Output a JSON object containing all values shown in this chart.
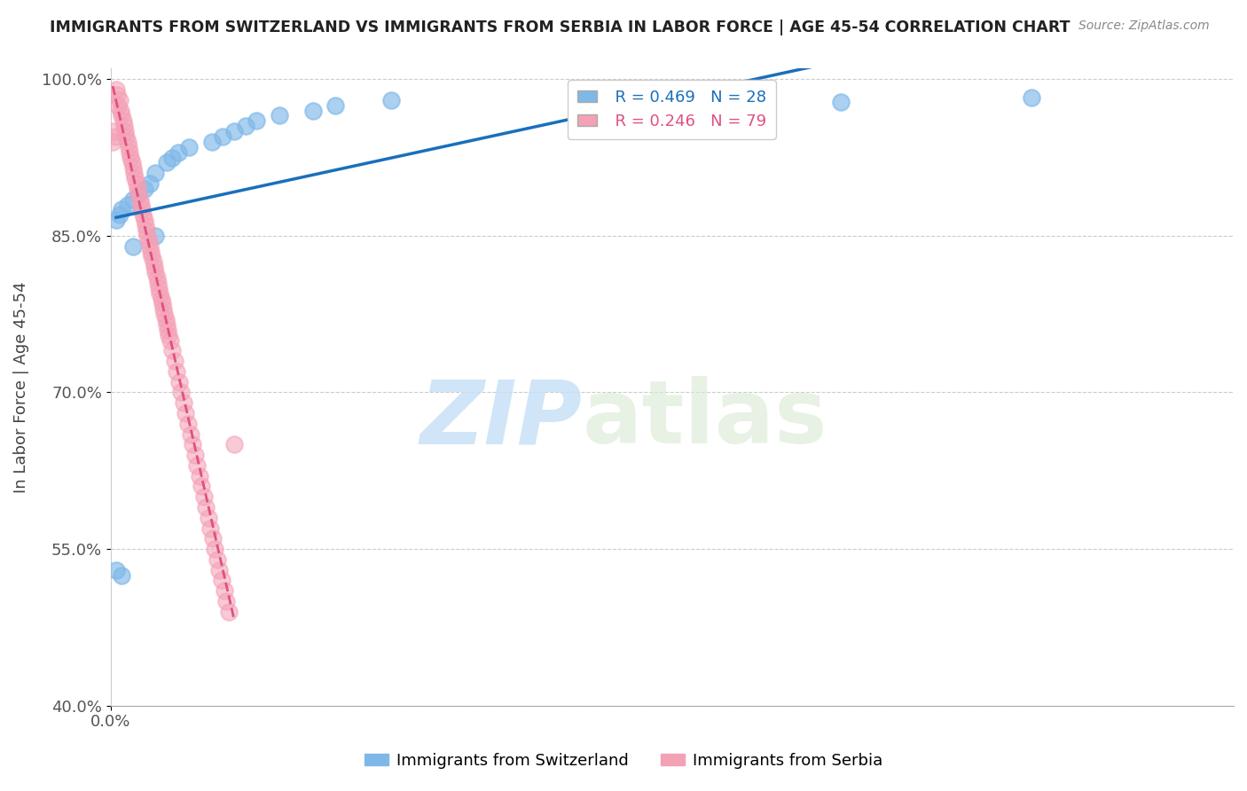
{
  "title": "IMMIGRANTS FROM SWITZERLAND VS IMMIGRANTS FROM SERBIA IN LABOR FORCE | AGE 45-54 CORRELATION CHART",
  "source": "Source: ZipAtlas.com",
  "ylabel": "In Labor Force | Age 45-54",
  "xlim": [
    0.0,
    1.0
  ],
  "ylim": [
    0.4,
    1.01
  ],
  "yticks": [
    0.4,
    0.55,
    0.7,
    0.85,
    1.0
  ],
  "ytick_labels": [
    "40.0%",
    "55.0%",
    "70.0%",
    "85.0%",
    "100.0%"
  ],
  "xticks": [
    0.0
  ],
  "xtick_labels": [
    "0.0%"
  ],
  "legend_R_blue": "R = 0.469",
  "legend_N_blue": "N = 28",
  "legend_R_pink": "R = 0.246",
  "legend_N_pink": "N = 79",
  "legend_label_blue": "Immigrants from Switzerland",
  "legend_label_pink": "Immigrants from Serbia",
  "color_blue": "#7eb8e8",
  "color_pink": "#f4a0b5",
  "color_trend_blue": "#1a6fbc",
  "color_trend_pink": "#e05080",
  "background_color": "#ffffff",
  "watermark_zip": "ZIP",
  "watermark_atlas": "atlas",
  "swiss_x": [
    0.005,
    0.008,
    0.01,
    0.015,
    0.02,
    0.025,
    0.03,
    0.035,
    0.04,
    0.05,
    0.055,
    0.06,
    0.07,
    0.09,
    0.1,
    0.11,
    0.12,
    0.13,
    0.15,
    0.18,
    0.2,
    0.25,
    0.65,
    0.82,
    0.005,
    0.01,
    0.02,
    0.04
  ],
  "swiss_y": [
    0.865,
    0.87,
    0.875,
    0.88,
    0.885,
    0.89,
    0.895,
    0.9,
    0.91,
    0.92,
    0.925,
    0.93,
    0.935,
    0.94,
    0.945,
    0.95,
    0.955,
    0.96,
    0.965,
    0.97,
    0.975,
    0.98,
    0.978,
    0.982,
    0.53,
    0.525,
    0.84,
    0.85
  ],
  "serbia_x": [
    0.002,
    0.003,
    0.004,
    0.005,
    0.006,
    0.007,
    0.008,
    0.009,
    0.01,
    0.011,
    0.012,
    0.013,
    0.014,
    0.015,
    0.016,
    0.017,
    0.018,
    0.019,
    0.02,
    0.021,
    0.022,
    0.023,
    0.024,
    0.025,
    0.026,
    0.027,
    0.028,
    0.029,
    0.03,
    0.031,
    0.032,
    0.033,
    0.034,
    0.035,
    0.036,
    0.037,
    0.038,
    0.039,
    0.04,
    0.041,
    0.042,
    0.043,
    0.044,
    0.045,
    0.046,
    0.047,
    0.048,
    0.049,
    0.05,
    0.051,
    0.052,
    0.053,
    0.055,
    0.057,
    0.059,
    0.061,
    0.063,
    0.065,
    0.067,
    0.069,
    0.071,
    0.073,
    0.075,
    0.077,
    0.079,
    0.081,
    0.083,
    0.085,
    0.087,
    0.089,
    0.091,
    0.093,
    0.095,
    0.097,
    0.099,
    0.101,
    0.103,
    0.105,
    0.11
  ],
  "serbia_y": [
    0.94,
    0.95,
    0.945,
    0.99,
    0.985,
    0.975,
    0.98,
    0.97,
    0.965,
    0.96,
    0.955,
    0.95,
    0.945,
    0.94,
    0.935,
    0.93,
    0.925,
    0.92,
    0.915,
    0.91,
    0.905,
    0.9,
    0.895,
    0.89,
    0.885,
    0.88,
    0.875,
    0.87,
    0.865,
    0.86,
    0.855,
    0.85,
    0.845,
    0.84,
    0.835,
    0.83,
    0.825,
    0.82,
    0.815,
    0.81,
    0.805,
    0.8,
    0.795,
    0.79,
    0.785,
    0.78,
    0.775,
    0.77,
    0.765,
    0.76,
    0.755,
    0.75,
    0.74,
    0.73,
    0.72,
    0.71,
    0.7,
    0.69,
    0.68,
    0.67,
    0.66,
    0.65,
    0.64,
    0.63,
    0.62,
    0.61,
    0.6,
    0.59,
    0.58,
    0.57,
    0.56,
    0.55,
    0.54,
    0.53,
    0.52,
    0.51,
    0.5,
    0.49,
    0.65
  ]
}
